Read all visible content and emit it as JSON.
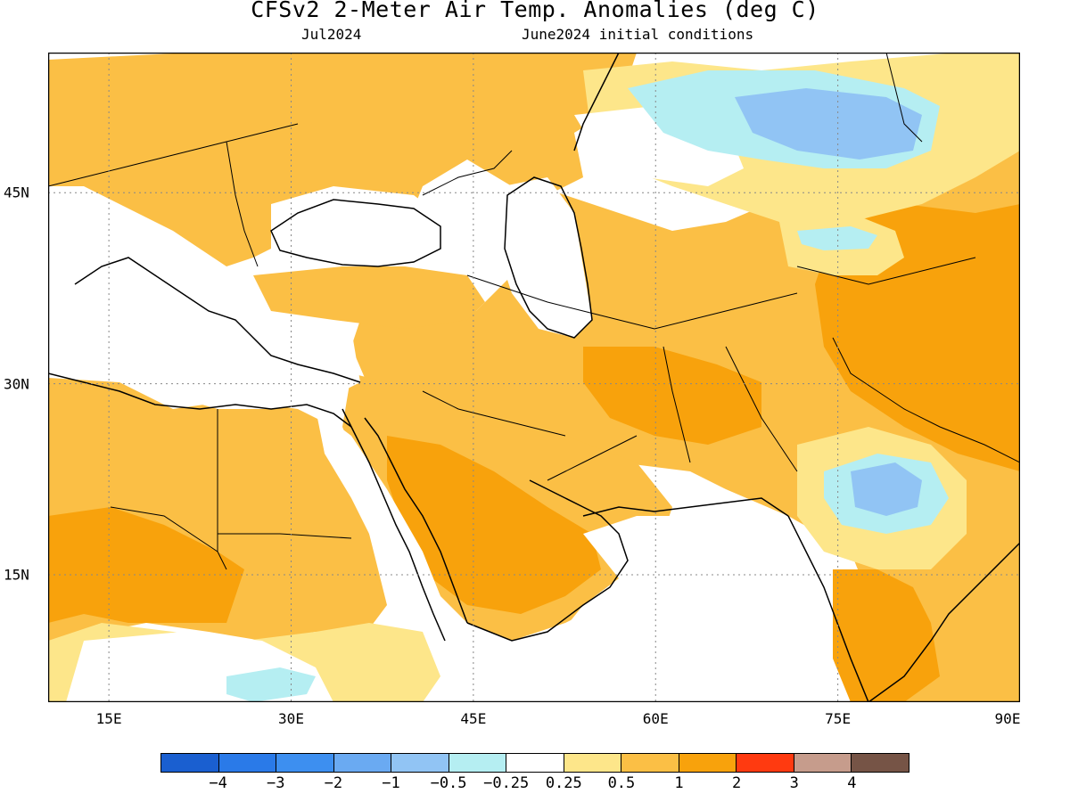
{
  "header": {
    "title": "CFSv2 2-Meter Air Temp. Anomalies (deg C)",
    "month": "Jul2024",
    "initial_conditions": "June2024 initial conditions"
  },
  "map": {
    "lon_range": [
      10,
      90
    ],
    "lat_range": [
      5,
      56
    ],
    "lon_ticks": [
      {
        "value": 15,
        "label": "15E"
      },
      {
        "value": 30,
        "label": "30E"
      },
      {
        "value": 45,
        "label": "45E"
      },
      {
        "value": 60,
        "label": "60E"
      },
      {
        "value": 75,
        "label": "75E"
      },
      {
        "value": 90,
        "label": "90E"
      }
    ],
    "lat_ticks": [
      {
        "value": 45,
        "label": "45N"
      },
      {
        "value": 30,
        "label": "30N"
      },
      {
        "value": 15,
        "label": "15N"
      }
    ],
    "gridlines": "dotted"
  },
  "colorbar": {
    "colors": [
      "#1a5fd0",
      "#2a7ae8",
      "#3d8ff0",
      "#6aaaf2",
      "#91c4f4",
      "#b5eef2",
      "#ffffff",
      "#fde68a",
      "#fbbf45",
      "#f8a20c",
      "#ff3a10",
      "#c69c8c",
      "#765446"
    ],
    "labels": [
      "-4",
      "-3",
      "-2",
      "-1",
      "-0.5",
      "-0.25",
      "0.25",
      "0.5",
      "1",
      "2",
      "3",
      "4"
    ]
  }
}
